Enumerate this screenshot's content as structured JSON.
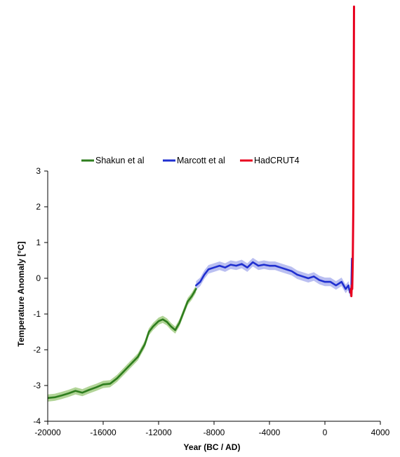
{
  "chart_data": {
    "type": "line",
    "xlabel": "Year (BC / AD)",
    "ylabel": "Temperature Anomaly [°C]",
    "xlim": [
      -20000,
      4000
    ],
    "ylim": [
      -4,
      3
    ],
    "x_ticks": [
      "-20000",
      "-16000",
      "-12000",
      "-8000",
      "-4000",
      "0",
      "4000"
    ],
    "y_ticks": [
      "3",
      "2",
      "1",
      "0",
      "-1",
      "-2",
      "-3",
      "-4"
    ],
    "grid": false,
    "legend_position": "top",
    "series": [
      {
        "name": "Shakun et al",
        "color": "#2e7d1e",
        "band_color": "#a8cf8c",
        "uncertainty": 0.1,
        "x": [
          -20000,
          -19500,
          -19000,
          -18500,
          -18000,
          -17500,
          -17000,
          -16500,
          -16000,
          -15500,
          -15000,
          -14500,
          -14000,
          -13500,
          -13000,
          -12700,
          -12400,
          -12000,
          -11700,
          -11400,
          -11100,
          -10800,
          -10500,
          -10200,
          -9900,
          -9600,
          -9300
        ],
        "y": [
          -3.35,
          -3.33,
          -3.28,
          -3.22,
          -3.15,
          -3.2,
          -3.12,
          -3.05,
          -2.97,
          -2.95,
          -2.8,
          -2.6,
          -2.4,
          -2.2,
          -1.85,
          -1.5,
          -1.35,
          -1.2,
          -1.15,
          -1.22,
          -1.35,
          -1.45,
          -1.25,
          -0.95,
          -0.65,
          -0.5,
          -0.3
        ]
      },
      {
        "name": "Marcott et al",
        "color": "#1f2fd0",
        "band_color": "#b3b8f0",
        "uncertainty": 0.12,
        "x": [
          -9300,
          -9000,
          -8700,
          -8400,
          -8000,
          -7600,
          -7200,
          -6800,
          -6400,
          -6000,
          -5600,
          -5200,
          -4800,
          -4400,
          -4000,
          -3600,
          -3200,
          -2800,
          -2400,
          -2000,
          -1600,
          -1200,
          -800,
          -400,
          0,
          400,
          800,
          1200,
          1500,
          1700,
          1800,
          1900,
          1950
        ],
        "y": [
          -0.2,
          -0.1,
          0.1,
          0.25,
          0.3,
          0.35,
          0.3,
          0.38,
          0.35,
          0.4,
          0.3,
          0.45,
          0.35,
          0.38,
          0.35,
          0.35,
          0.3,
          0.25,
          0.2,
          0.1,
          0.05,
          0.0,
          0.05,
          -0.05,
          -0.1,
          -0.1,
          -0.2,
          -0.1,
          -0.3,
          -0.2,
          -0.4,
          -0.35,
          0.55
        ]
      },
      {
        "name": "HadCRUT4",
        "color": "#e8001e",
        "x": [
          1850,
          1880,
          1910,
          1940,
          1970,
          2000,
          2010,
          2050,
          2100
        ],
        "y": [
          -0.4,
          -0.3,
          -0.5,
          -0.2,
          -0.3,
          0.3,
          0.5,
          2.0,
          7.6
        ]
      }
    ]
  }
}
